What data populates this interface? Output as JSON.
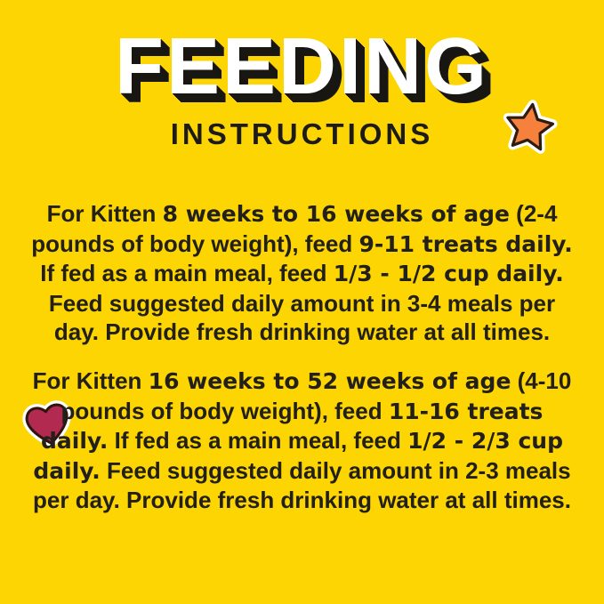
{
  "page": {
    "background_color": "#FCD503",
    "text_color": "#222019",
    "title_shadow_color": "#191712"
  },
  "header": {
    "title": "FEEDING",
    "subtitle": "INSTRUCTIONS"
  },
  "icons": {
    "star": {
      "name": "star-icon",
      "fill": "#F5813D",
      "outline": "#2E1C10",
      "halo": "#FFFFFF"
    },
    "heart": {
      "name": "heart-icon",
      "fill": "#B32A51",
      "outline": "#2E130F",
      "halo": "#FFFFFF"
    }
  },
  "paragraphs": [
    {
      "id": "kitten-8-16-weeks",
      "segments": [
        {
          "text": "For Kitten ",
          "bold": false
        },
        {
          "text": "8 weeks to 16 weeks of age",
          "bold": true
        },
        {
          "text": " (2-4 pounds of body weight), feed ",
          "bold": false
        },
        {
          "text": "9-11 treats daily.",
          "bold": true
        },
        {
          "text": " If fed as a main meal, feed ",
          "bold": false
        },
        {
          "text": "1/3 - 1/2 cup daily.",
          "bold": true
        },
        {
          "text": " Feed suggested daily amount in 3-4 meals per day. Provide fresh drinking water at all times.",
          "bold": false
        }
      ]
    },
    {
      "id": "kitten-16-52-weeks",
      "segments": [
        {
          "text": "For Kitten ",
          "bold": false
        },
        {
          "text": "16 weeks to 52 weeks of age",
          "bold": true
        },
        {
          "text": " (4-10 pounds of body weight), feed ",
          "bold": false
        },
        {
          "text": "11-16 treats daily.",
          "bold": true
        },
        {
          "text": " If fed as a main meal, feed ",
          "bold": false
        },
        {
          "text": "1/2 - 2/3 cup daily.",
          "bold": true
        },
        {
          "text": " Feed suggested daily amount in 2-3 meals per day. Provide fresh drinking water at all times.",
          "bold": false
        }
      ]
    }
  ]
}
